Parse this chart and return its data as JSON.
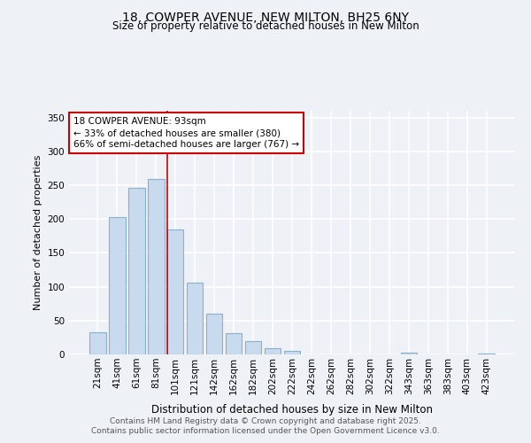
{
  "title_line1": "18, COWPER AVENUE, NEW MILTON, BH25 6NY",
  "title_line2": "Size of property relative to detached houses in New Milton",
  "xlabel": "Distribution of detached houses by size in New Milton",
  "ylabel": "Number of detached properties",
  "bar_labels": [
    "21sqm",
    "41sqm",
    "61sqm",
    "81sqm",
    "101sqm",
    "121sqm",
    "142sqm",
    "162sqm",
    "182sqm",
    "202sqm",
    "222sqm",
    "242sqm",
    "262sqm",
    "282sqm",
    "302sqm",
    "322sqm",
    "343sqm",
    "363sqm",
    "383sqm",
    "403sqm",
    "423sqm"
  ],
  "bar_values": [
    33,
    203,
    246,
    259,
    184,
    106,
    60,
    31,
    19,
    9,
    5,
    0,
    0,
    0,
    0,
    0,
    3,
    0,
    0,
    0,
    1
  ],
  "bar_color": "#c8daed",
  "bar_edge_color": "#8ab0d0",
  "vline_color": "#cc0000",
  "vline_position": 3.6,
  "annotation_text": "18 COWPER AVENUE: 93sqm\n← 33% of detached houses are smaller (380)\n66% of semi-detached houses are larger (767) →",
  "annotation_box_facecolor": "#ffffff",
  "annotation_box_edgecolor": "#cc0000",
  "ylim": [
    0,
    360
  ],
  "yticks": [
    0,
    50,
    100,
    150,
    200,
    250,
    300,
    350
  ],
  "background_color": "#eef2f7",
  "grid_color": "#ffffff",
  "footer_line1": "Contains HM Land Registry data © Crown copyright and database right 2025.",
  "footer_line2": "Contains public sector information licensed under the Open Government Licence v3.0."
}
